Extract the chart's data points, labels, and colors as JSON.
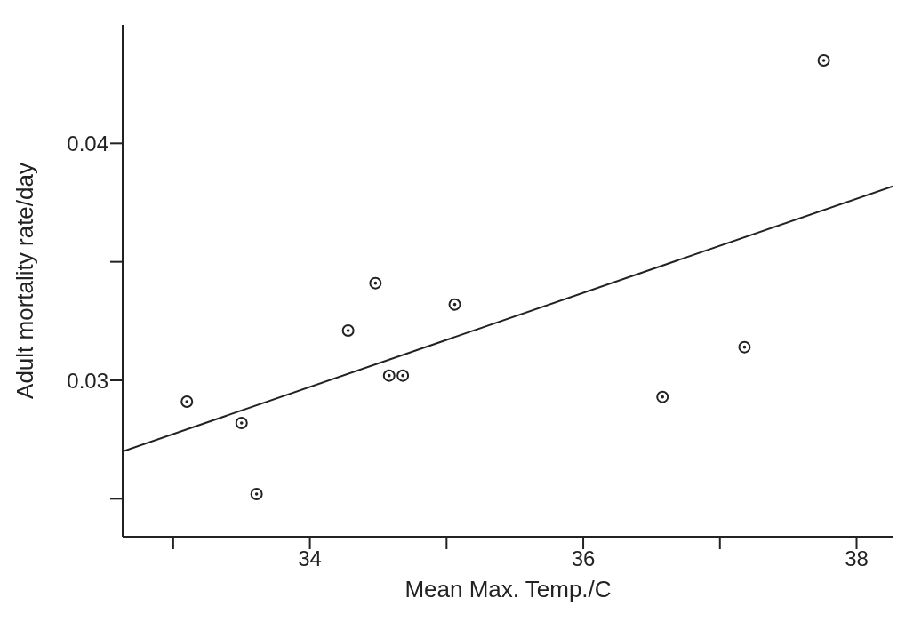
{
  "chart_data": {
    "type": "scatter",
    "xlabel": "Mean Max. Temp./C",
    "ylabel": "Adult mortality rate/day",
    "xlim": [
      32.63,
      38.27
    ],
    "ylim": [
      0.0234,
      0.045
    ],
    "xticks": [
      {
        "value": 33,
        "label": null
      },
      34,
      {
        "value": 35,
        "label": null
      },
      36,
      {
        "value": 37,
        "label": null
      },
      38
    ],
    "yticks": [
      {
        "value": 0.025,
        "label": null
      },
      0.03,
      {
        "value": 0.035,
        "label": null
      },
      0.04
    ],
    "marker": "circle",
    "grid": false,
    "legend": false,
    "series": [
      {
        "type": "scatter",
        "color": "#222222",
        "x": [
          33.1,
          33.5,
          33.61,
          34.28,
          34.48,
          34.58,
          34.68,
          35.06,
          36.58,
          37.18,
          37.76
        ],
        "values": [
          0.0291,
          0.0282,
          0.0252,
          0.0321,
          0.0341,
          0.0302,
          0.0302,
          0.0332,
          0.0293,
          0.0314,
          0.0435
        ]
      },
      {
        "type": "line",
        "color": "#222222",
        "line_style": "solid",
        "marker": "none",
        "x": [
          32.63,
          38.27
        ],
        "values": [
          0.027,
          0.0382
        ]
      }
    ]
  }
}
